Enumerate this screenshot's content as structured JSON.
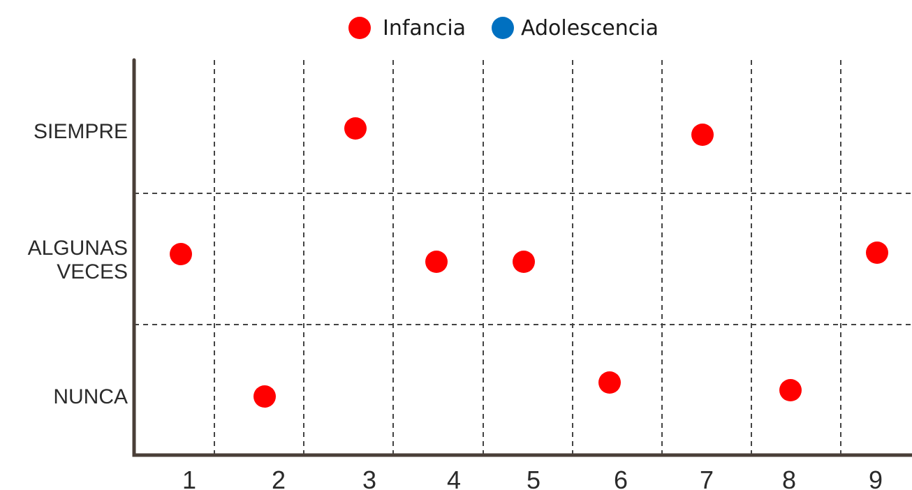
{
  "chart_data": {
    "type": "scatter",
    "title": "",
    "xlabel": "",
    "ylabel": "",
    "legend": {
      "position": "top-center",
      "items": [
        {
          "label": "Infancia",
          "color": "#ff0000"
        },
        {
          "label": "Adolescencia",
          "color": "#0070c0"
        }
      ]
    },
    "x_ticks": [
      "1",
      "2",
      "3",
      "4",
      "5",
      "6",
      "7",
      "8",
      "9"
    ],
    "y_categories": [
      "NUNCA",
      "ALGUNAS VECES",
      "SIEMPRE"
    ],
    "grid": true,
    "series": [
      {
        "name": "Infancia",
        "color": "#ff0000",
        "points": [
          {
            "x": 1,
            "y": "ALGUNAS VECES"
          },
          {
            "x": 2,
            "y": "NUNCA"
          },
          {
            "x": 3,
            "y": "SIEMPRE"
          },
          {
            "x": 4,
            "y": "ALGUNAS VECES"
          },
          {
            "x": 5,
            "y": "ALGUNAS VECES"
          },
          {
            "x": 6,
            "y": "NUNCA"
          },
          {
            "x": 7,
            "y": "SIEMPRE"
          },
          {
            "x": 8,
            "y": "NUNCA"
          },
          {
            "x": 9,
            "y": "ALGUNAS VECES"
          }
        ]
      },
      {
        "name": "Adolescencia",
        "color": "#0070c0",
        "points": []
      }
    ]
  }
}
